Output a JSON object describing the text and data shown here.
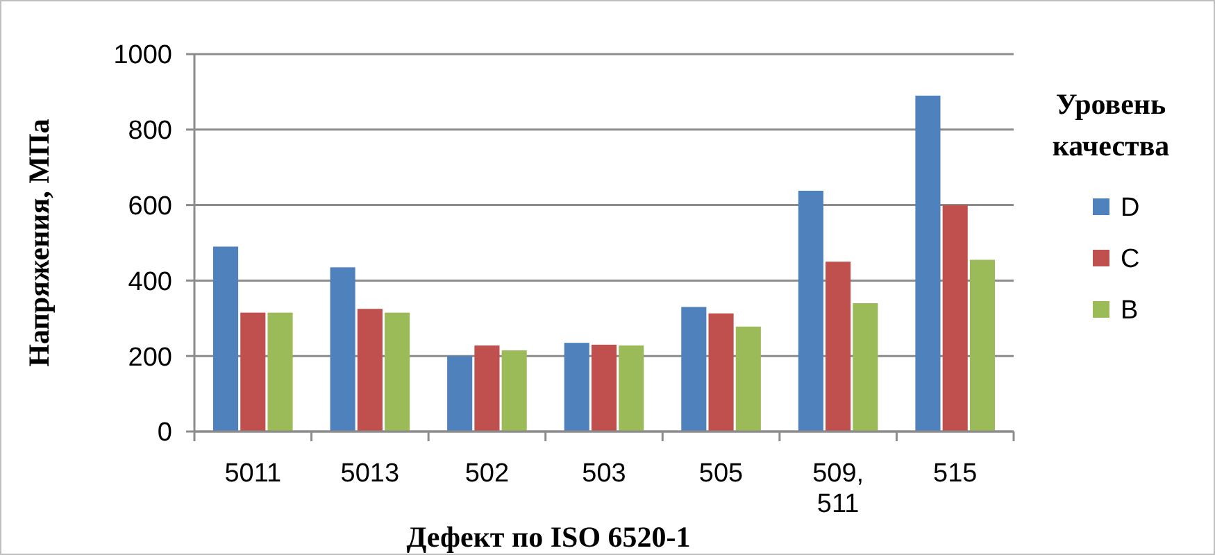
{
  "chart_data": {
    "type": "bar",
    "xlabel": "Дефект по ISO 6520-1",
    "ylabel": "Напряжения, МПа",
    "legend_title": "Уровень качества",
    "categories": [
      "5011",
      "5013",
      "502",
      "503",
      "505",
      "509, 511",
      "515"
    ],
    "series": [
      {
        "name": "D",
        "color": "#4f81bd",
        "values": [
          490,
          435,
          200,
          235,
          330,
          638,
          890
        ]
      },
      {
        "name": "C",
        "color": "#c0504d",
        "values": [
          315,
          325,
          228,
          230,
          313,
          450,
          600
        ]
      },
      {
        "name": "B",
        "color": "#9bbb59",
        "values": [
          315,
          315,
          215,
          228,
          278,
          340,
          455
        ]
      }
    ],
    "ylim": [
      0,
      1000
    ],
    "yticks": [
      0,
      200,
      400,
      600,
      800,
      1000
    ],
    "grid": "y",
    "legend": "right"
  }
}
